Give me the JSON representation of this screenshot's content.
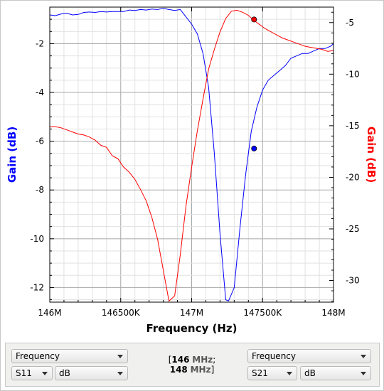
{
  "chart_data": {
    "type": "line",
    "xlabel": "Frequency (Hz)",
    "ylabel_left": "Gain (dB)",
    "ylabel_right": "Gain (dB)",
    "xlim": [
      146000000,
      148000000
    ],
    "ylim_left": [
      -12.6,
      -0.5
    ],
    "ylim_right": [
      -32.1,
      -3.5
    ],
    "x_ticks": [
      {
        "value": 146000000,
        "label": "146M"
      },
      {
        "value": 146500000,
        "label": "146500K"
      },
      {
        "value": 147000000,
        "label": "147M"
      },
      {
        "value": 147500000,
        "label": "147500K"
      },
      {
        "value": 148000000,
        "label": "148M"
      }
    ],
    "y_ticks_left": [
      {
        "value": -2,
        "label": "-2"
      },
      {
        "value": -4,
        "label": "-4"
      },
      {
        "value": -6,
        "label": "-6"
      },
      {
        "value": -8,
        "label": "-8"
      },
      {
        "value": -10,
        "label": "-10"
      },
      {
        "value": -12,
        "label": "-12"
      }
    ],
    "y_ticks_right": [
      {
        "value": -5,
        "label": "-5"
      },
      {
        "value": -10,
        "label": "-10"
      },
      {
        "value": -15,
        "label": "-15"
      },
      {
        "value": -20,
        "label": "-20"
      },
      {
        "value": -25,
        "label": "-25"
      },
      {
        "value": -30,
        "label": "-30"
      }
    ],
    "grid": true,
    "series": [
      {
        "axis": "left",
        "color": "#0000ff",
        "x": [
          146000000,
          146040000,
          146080000,
          146120000,
          146160000,
          146200000,
          146240000,
          146280000,
          146320000,
          146360000,
          146400000,
          146440000,
          146480000,
          146520000,
          146560000,
          146600000,
          146640000,
          146680000,
          146720000,
          146760000,
          146800000,
          146840000,
          146880000,
          146920000,
          146960000,
          147000000,
          147040000,
          147080000,
          147120000,
          147160000,
          147200000,
          147240000,
          147260000,
          147300000,
          147340000,
          147380000,
          147420000,
          147460000,
          147500000,
          147540000,
          147580000,
          147620000,
          147660000,
          147700000,
          147740000,
          147780000,
          147820000,
          147860000,
          147900000,
          147940000,
          147980000,
          148000000
        ],
        "y": [
          -0.82,
          -0.85,
          -0.78,
          -0.75,
          -0.82,
          -0.8,
          -0.72,
          -0.7,
          -0.72,
          -0.68,
          -0.7,
          -0.68,
          -0.68,
          -0.68,
          -0.62,
          -0.64,
          -0.6,
          -0.62,
          -0.58,
          -0.6,
          -0.55,
          -0.6,
          -0.64,
          -0.6,
          -0.9,
          -1.2,
          -1.6,
          -2.4,
          -3.8,
          -6.5,
          -9.8,
          -12.5,
          -12.55,
          -12.0,
          -9.6,
          -7.4,
          -5.6,
          -4.6,
          -3.9,
          -3.5,
          -3.3,
          -3.1,
          -2.9,
          -2.6,
          -2.5,
          -2.4,
          -2.4,
          -2.3,
          -2.2,
          -2.2,
          -2.1,
          -2.0
        ],
        "marker": {
          "x": 147440000,
          "y": -6.3
        }
      },
      {
        "axis": "right",
        "color": "#ff0000",
        "x": [
          146000000,
          146040000,
          146080000,
          146120000,
          146160000,
          146200000,
          146240000,
          146280000,
          146320000,
          146360000,
          146400000,
          146440000,
          146480000,
          146520000,
          146560000,
          146600000,
          146640000,
          146680000,
          146720000,
          146760000,
          146800000,
          146840000,
          146880000,
          146920000,
          146960000,
          147000000,
          147040000,
          147080000,
          147120000,
          147160000,
          147200000,
          147240000,
          147280000,
          147320000,
          147360000,
          147400000,
          147440000,
          147480000,
          147520000,
          147560000,
          147600000,
          147640000,
          147680000,
          147720000,
          147760000,
          147800000,
          147840000,
          147880000,
          147920000,
          147960000,
          148000000
        ],
        "y": [
          -15.1,
          -15.1,
          -15.2,
          -15.4,
          -15.6,
          -15.8,
          -15.9,
          -16.1,
          -16.4,
          -16.9,
          -17.1,
          -17.9,
          -18.2,
          -19.0,
          -19.5,
          -20.2,
          -21.2,
          -22.3,
          -23.9,
          -26.0,
          -29.0,
          -32.0,
          -31.5,
          -27.5,
          -22.8,
          -19.0,
          -15.5,
          -12.4,
          -9.5,
          -7.6,
          -5.9,
          -4.6,
          -3.9,
          -3.8,
          -4.0,
          -4.3,
          -4.8,
          -5.2,
          -5.6,
          -5.9,
          -6.2,
          -6.5,
          -6.7,
          -6.9,
          -7.1,
          -7.3,
          -7.4,
          -7.5,
          -7.6,
          -7.8,
          -7.7
        ],
        "marker": {
          "x": 147440000,
          "y": -4.7
        }
      }
    ]
  },
  "controls": {
    "left": {
      "quantity": "Frequency",
      "param": "S11",
      "unit": "dB"
    },
    "range": {
      "start_value": "146",
      "start_unit": "MHz",
      "separator": ";",
      "end_value": "148",
      "end_unit": "MHz"
    },
    "right": {
      "quantity": "Frequency",
      "param": "S21",
      "unit": "dB"
    }
  }
}
